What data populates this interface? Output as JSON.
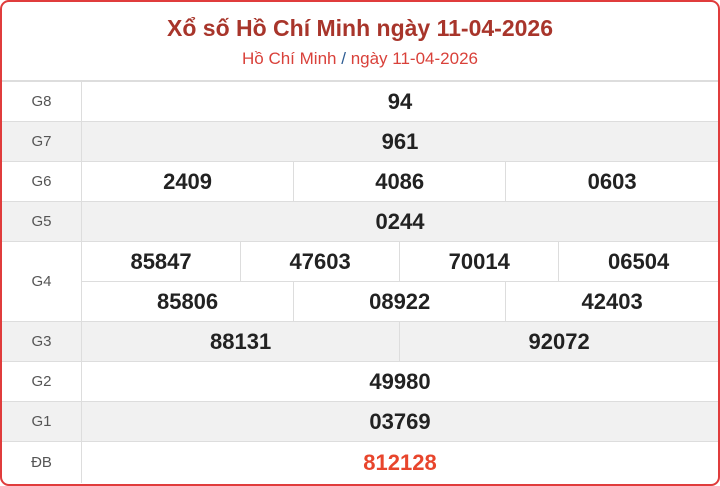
{
  "header": {
    "title": "Xổ số Hồ Chí Minh ngày 11-04-2026",
    "breadcrumb_province": "Hồ Chí Minh",
    "breadcrumb_sep": "/",
    "breadcrumb_date": "ngày 11-04-2026"
  },
  "prizes": {
    "g8": {
      "label": "G8",
      "numbers": [
        "94"
      ]
    },
    "g7": {
      "label": "G7",
      "numbers": [
        "961"
      ]
    },
    "g6": {
      "label": "G6",
      "numbers": [
        "2409",
        "4086",
        "0603"
      ]
    },
    "g5": {
      "label": "G5",
      "numbers": [
        "0244"
      ]
    },
    "g4": {
      "label": "G4",
      "numbers": [
        "85847",
        "47603",
        "70014",
        "06504",
        "85806",
        "08922",
        "42403"
      ]
    },
    "g3": {
      "label": "G3",
      "numbers": [
        "88131",
        "92072"
      ]
    },
    "g2": {
      "label": "G2",
      "numbers": [
        "49980"
      ]
    },
    "g1": {
      "label": "G1",
      "numbers": [
        "03769"
      ]
    },
    "db": {
      "label": "ĐB",
      "numbers": [
        "812128"
      ]
    }
  },
  "colors": {
    "title": "#a8352b",
    "special": "#e8452c",
    "border": "#e03c3c"
  }
}
